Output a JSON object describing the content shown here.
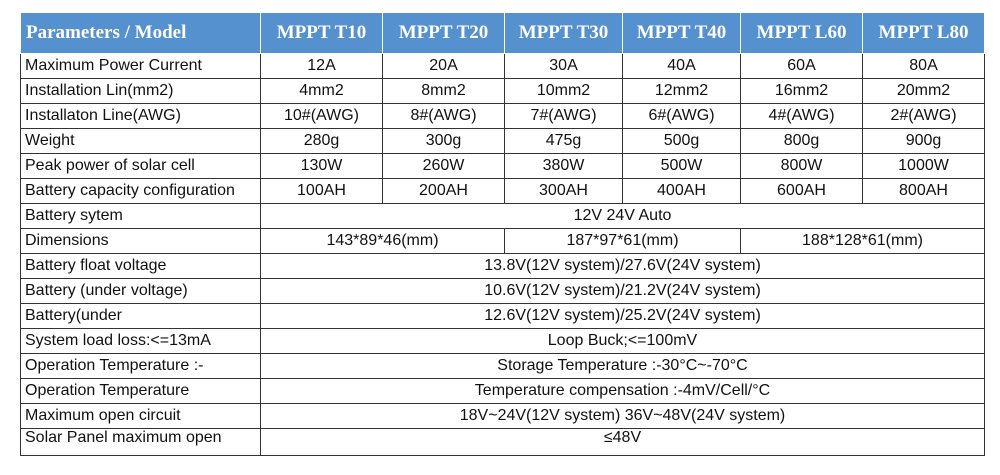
{
  "header": {
    "param_label": "Parameters / Model",
    "models": [
      "MPPT T10",
      "MPPT T20",
      "MPPT T30",
      "MPPT T40",
      "MPPT L60",
      "MPPT L80"
    ]
  },
  "rows_per_model": [
    {
      "label": "Maximum Power Current",
      "values": [
        "12A",
        "20A",
        "30A",
        "40A",
        "60A",
        "80A"
      ]
    },
    {
      "label": "Installation Lin(mm2)",
      "values": [
        "4mm2",
        "8mm2",
        "10mm2",
        "12mm2",
        "16mm2",
        "20mm2"
      ]
    },
    {
      "label": "Installaton Line(AWG)",
      "values": [
        "10#(AWG)",
        "8#(AWG)",
        "7#(AWG)",
        "6#(AWG)",
        "4#(AWG)",
        "2#(AWG)"
      ]
    },
    {
      "label": "Weight",
      "values": [
        "280g",
        "300g",
        "475g",
        "500g",
        "800g",
        "900g"
      ]
    },
    {
      "label": "Peak power of solar cell",
      "values": [
        "130W",
        "260W",
        "380W",
        "500W",
        "800W",
        "1000W"
      ]
    },
    {
      "label": "Battery capacity configuration",
      "values": [
        "100AH",
        "200AH",
        "300AH",
        "400AH",
        "600AH",
        "800AH"
      ]
    }
  ],
  "battery_system": {
    "label": "Battery sytem",
    "value": "12V 24V Auto"
  },
  "dimensions": {
    "label": "Dimensions",
    "values": [
      "143*89*46(mm)",
      "187*97*61(mm)",
      "188*128*61(mm)"
    ]
  },
  "rows_shared": [
    {
      "label": "Battery float voltage",
      "value": "13.8V(12V system)/27.6V(24V system)"
    },
    {
      "label": "Battery (under voltage)",
      "value": "10.6V(12V system)/21.2V(24V system)"
    },
    {
      "label": "Battery(under",
      "value": "12.6V(12V system)/25.2V(24V system)"
    },
    {
      "label": "System load loss:<=13mA",
      "value": "Loop Buck;<=100mV"
    },
    {
      "label": "Operation Temperature :-",
      "value": "Storage Temperature :-30°C~-70°C"
    },
    {
      "label": "Operation Temperature",
      "value": "Temperature compensation :-4mV/Cell/°C"
    },
    {
      "label": "Maximum open circuit",
      "value": "18V~24V(12V system) 36V~48V(24V system)"
    },
    {
      "label": "Solar Panel maximum open",
      "value": "≤48V"
    }
  ]
}
